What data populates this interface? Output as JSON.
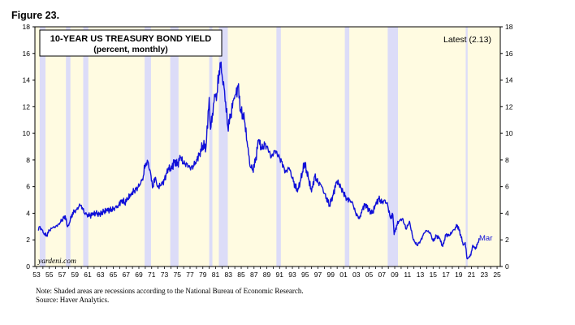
{
  "figure_label": "Figure 23.",
  "chart_data": {
    "type": "line",
    "title": "10-YEAR US TREASURY BOND YIELD",
    "subtitle": "(percent, monthly)",
    "latest_label": "Latest (2.13)",
    "end_label": "Mar",
    "watermark": "yardeni.com",
    "xlim": [
      1952.75,
      2025.5
    ],
    "ylim": [
      0,
      18
    ],
    "y_ticks": [
      0,
      2,
      4,
      6,
      8,
      10,
      12,
      14,
      16,
      18
    ],
    "x_tick_labels": [
      "53",
      "55",
      "57",
      "59",
      "61",
      "63",
      "65",
      "67",
      "69",
      "71",
      "73",
      "75",
      "77",
      "79",
      "81",
      "83",
      "85",
      "87",
      "89",
      "91",
      "93",
      "95",
      "97",
      "99",
      "01",
      "03",
      "05",
      "07",
      "09",
      "11",
      "13",
      "15",
      "17",
      "19",
      "21",
      "23",
      "25"
    ],
    "recessions": [
      [
        1953.5,
        1954.4
      ],
      [
        1957.6,
        1958.3
      ],
      [
        1960.3,
        1961.1
      ],
      [
        1969.9,
        1970.9
      ],
      [
        1973.9,
        1975.2
      ],
      [
        1980.0,
        1980.5
      ],
      [
        1981.5,
        1982.9
      ],
      [
        1990.5,
        1991.2
      ],
      [
        2001.2,
        2001.9
      ],
      [
        2007.9,
        2009.5
      ],
      [
        2020.1,
        2020.4
      ]
    ],
    "colors": {
      "line": "#1010d8",
      "recession": "#dcdcf8",
      "plot_bg": "#fffbe1",
      "frame": "#000000"
    },
    "series": [
      {
        "x": [
          1953.3,
          1953.5,
          1953.8,
          1954.2,
          1954.6,
          1955.0,
          1955.5,
          1956.0,
          1956.5,
          1957.0,
          1957.5,
          1957.8,
          1958.2,
          1958.5,
          1958.9,
          1959.3,
          1959.8,
          1960.0,
          1960.5,
          1960.9,
          1961.3,
          1961.8,
          1962.3,
          1962.8,
          1963.5,
          1964.0,
          1965.0,
          1965.8,
          1966.3,
          1966.8,
          1967.2,
          1967.8,
          1968.3,
          1968.8,
          1969.3,
          1969.7,
          1970.0,
          1970.4,
          1970.9,
          1971.2,
          1971.6,
          1971.9,
          1972.5,
          1973.0,
          1973.6,
          1974.0,
          1974.6,
          1975.0,
          1975.5,
          1976.0,
          1976.5,
          1977.0,
          1977.5,
          1978.0,
          1978.5,
          1979.0,
          1979.5,
          1980.0,
          1980.2,
          1980.5,
          1980.9,
          1981.2,
          1981.7,
          1982.0,
          1982.4,
          1982.9,
          1983.3,
          1983.8,
          1984.1,
          1984.5,
          1984.9,
          1985.5,
          1986.0,
          1986.4,
          1986.8,
          1987.2,
          1987.7,
          1988.2,
          1988.7,
          1989.2,
          1989.7,
          1990.3,
          1990.8,
          1991.3,
          1991.9,
          1992.5,
          1993.0,
          1993.8,
          1994.3,
          1994.9,
          1995.5,
          1996.0,
          1996.5,
          1997.0,
          1997.5,
          1998.0,
          1998.8,
          1999.3,
          1999.9,
          2000.3,
          2000.9,
          2001.5,
          2002.0,
          2002.4,
          2002.9,
          2003.5,
          2003.9,
          2004.4,
          2005.0,
          2005.5,
          2006.0,
          2006.5,
          2007.0,
          2007.4,
          2007.9,
          2008.3,
          2008.7,
          2008.9,
          2009.3,
          2009.7,
          2010.2,
          2010.8,
          2011.3,
          2011.9,
          2012.5,
          2013.0,
          2013.6,
          2014.0,
          2014.6,
          2015.0,
          2015.5,
          2016.0,
          2016.5,
          2017.0,
          2017.5,
          2018.0,
          2018.8,
          2019.3,
          2019.7,
          2020.0,
          2020.3,
          2020.6,
          2020.9,
          2021.2,
          2021.6,
          2022.0,
          2022.2
        ],
        "y": [
          2.7,
          3.0,
          2.8,
          2.4,
          2.35,
          2.7,
          2.9,
          3.0,
          3.2,
          3.5,
          3.8,
          3.0,
          3.3,
          3.9,
          4.1,
          4.3,
          4.6,
          4.6,
          4.0,
          3.9,
          3.8,
          3.9,
          4.0,
          3.9,
          4.1,
          4.2,
          4.3,
          4.6,
          5.0,
          4.8,
          5.0,
          5.5,
          5.7,
          5.9,
          6.3,
          6.8,
          7.7,
          7.9,
          6.8,
          6.0,
          6.7,
          6.0,
          6.1,
          6.5,
          7.4,
          7.2,
          8.0,
          7.6,
          8.2,
          7.7,
          7.7,
          7.4,
          7.5,
          8.0,
          8.5,
          9.1,
          9.0,
          12.7,
          10.3,
          11.5,
          12.9,
          13.0,
          15.3,
          14.4,
          13.2,
          10.5,
          11.1,
          12.5,
          12.9,
          13.5,
          11.8,
          11.0,
          9.0,
          7.5,
          7.3,
          7.8,
          9.5,
          8.8,
          9.2,
          8.8,
          8.2,
          8.7,
          8.3,
          7.9,
          7.1,
          7.4,
          6.6,
          5.6,
          6.5,
          7.8,
          6.6,
          5.6,
          6.8,
          6.3,
          6.1,
          5.5,
          4.6,
          5.3,
          6.3,
          6.2,
          5.6,
          5.1,
          5.0,
          4.8,
          4.0,
          3.6,
          4.3,
          4.7,
          4.2,
          4.0,
          4.6,
          5.1,
          4.8,
          5.0,
          4.6,
          3.7,
          3.9,
          2.4,
          3.1,
          3.4,
          3.6,
          2.8,
          3.4,
          2.0,
          1.6,
          1.9,
          2.5,
          2.7,
          2.5,
          1.9,
          2.3,
          2.1,
          1.5,
          2.4,
          2.3,
          2.6,
          3.1,
          2.4,
          1.6,
          1.8,
          0.6,
          0.7,
          0.85,
          1.6,
          1.3,
          1.8,
          2.13
        ]
      }
    ],
    "notes": [
      "Note: Shaded areas are recessions according to the National Bureau of Economic Research.",
      "Source: Haver Analytics."
    ]
  }
}
